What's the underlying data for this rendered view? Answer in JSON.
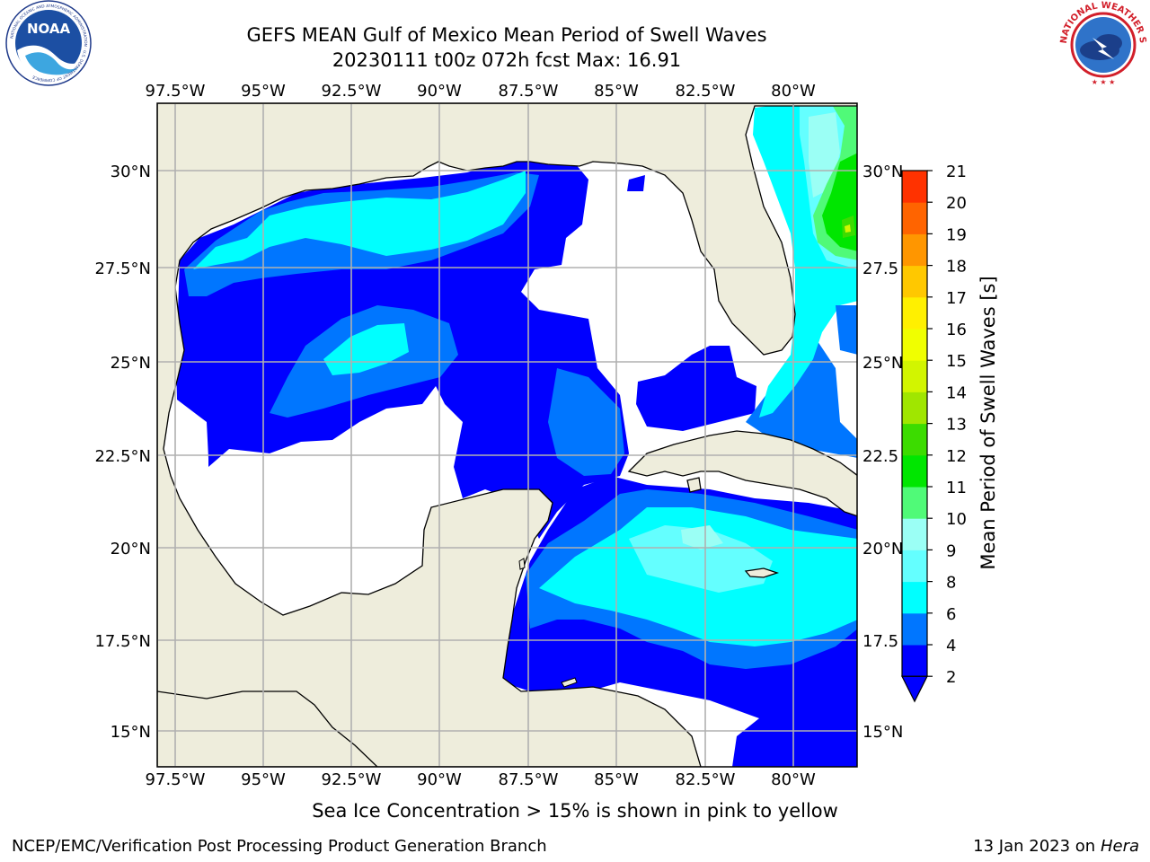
{
  "title": {
    "line1": "GEFS MEAN Gulf of Mexico Mean Period of Swell Waves",
    "line2": "20230111 t00z 072h fcst   Max: 16.91"
  },
  "map": {
    "lon_ticks": [
      "97.5°W",
      "95°W",
      "92.5°W",
      "90°W",
      "87.5°W",
      "85°W",
      "82.5°W",
      "80°W"
    ],
    "lat_ticks_left": [
      "30°N",
      "27.5°N",
      "25°N",
      "22.5°N",
      "20°N",
      "17.5°N",
      "15°N"
    ],
    "lat_ticks_right": [
      "30°N",
      "27.5",
      "25°N",
      "22.5",
      "20°N",
      "17.5",
      "15°N"
    ],
    "land_color": "#eeeddc",
    "no_data_color": "#ffffff",
    "grid_color": "#b0b0b0"
  },
  "colorbar": {
    "label": "Mean Period of Swell Waves [s]",
    "ticks": [
      "2",
      "4",
      "6",
      "8",
      "9",
      "10",
      "11",
      "12",
      "13",
      "14",
      "15",
      "16",
      "17",
      "18",
      "19",
      "20",
      "21"
    ],
    "colors": [
      "#0000ff",
      "#0076ff",
      "#00ffff",
      "#64ffff",
      "#9bfff5",
      "#50fa78",
      "#00e600",
      "#3cdc00",
      "#a0e600",
      "#d2f500",
      "#f0ff00",
      "#fff000",
      "#ffc800",
      "#ff9600",
      "#ff6400",
      "#ff3200",
      "#ff0000"
    ]
  },
  "caption": "Sea Ice Concentration > 15% is shown in pink to yellow",
  "footer": {
    "left": "NCEP/EMC/Verification Post Processing Product Generation Branch",
    "date": "13 Jan 2023 on ",
    "host": "Hera"
  },
  "logos": {
    "noaa": "NOAA",
    "noaa_ring": "NATIONAL OCEANIC AND ATMOSPHERIC ADMINISTRATION · U.S. DEPARTMENT OF COMMERCE",
    "nws_ring": "NATIONAL WEATHER SERVICE"
  }
}
